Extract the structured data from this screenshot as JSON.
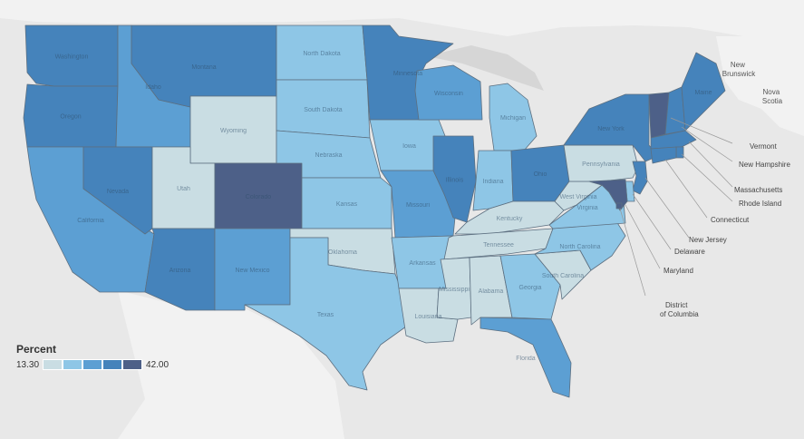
{
  "legend": {
    "title": "Percent",
    "min_label": "13.30",
    "max_label": "42.00",
    "steps": [
      "#c9dde3",
      "#8ec6e6",
      "#5c9fd3",
      "#4583bb",
      "#4d6088"
    ]
  },
  "colors": {
    "background": "#e6e6e6",
    "land": "#f2f2f2",
    "water": "#d4d4d4",
    "borders": "#5c6f80"
  },
  "geo_labels": {
    "new_brunswick": [
      "New",
      "Brunswick"
    ],
    "nova_scotia": [
      "Nova",
      "Scotia"
    ]
  },
  "states": {
    "WA": {
      "name": "Washington",
      "class": 3
    },
    "OR": {
      "name": "Oregon",
      "class": 3
    },
    "CA": {
      "name": "California",
      "class": 2
    },
    "ID": {
      "name": "Idaho",
      "class": 2
    },
    "NV": {
      "name": "Nevada",
      "class": 3
    },
    "MT": {
      "name": "Montana",
      "class": 3
    },
    "WY": {
      "name": "Wyoming",
      "class": 0
    },
    "UT": {
      "name": "Utah",
      "class": 0
    },
    "AZ": {
      "name": "Arizona",
      "class": 3
    },
    "CO": {
      "name": "Colorado",
      "class": 4
    },
    "NM": {
      "name": "New Mexico",
      "class": 2
    },
    "ND": {
      "name": "North Dakota",
      "class": 1
    },
    "SD": {
      "name": "South Dakota",
      "class": 1
    },
    "NE": {
      "name": "Nebraska",
      "class": 1
    },
    "KS": {
      "name": "Kansas",
      "class": 1
    },
    "OK": {
      "name": "Oklahoma",
      "class": 0
    },
    "TX": {
      "name": "Texas",
      "class": 1
    },
    "MN": {
      "name": "Minnesota",
      "class": 3
    },
    "IA": {
      "name": "Iowa",
      "class": 1
    },
    "MO": {
      "name": "Missouri",
      "class": 2
    },
    "AR": {
      "name": "Arkansas",
      "class": 1
    },
    "LA": {
      "name": "Louisiana",
      "class": 0
    },
    "WI": {
      "name": "Wisconsin",
      "class": 2
    },
    "IL": {
      "name": "Illinois",
      "class": 3
    },
    "MI": {
      "name": "Michigan",
      "class": 1
    },
    "IN": {
      "name": "Indiana",
      "class": 1
    },
    "OH": {
      "name": "Ohio",
      "class": 3
    },
    "KY": {
      "name": "Kentucky",
      "class": 0
    },
    "TN": {
      "name": "Tennessee",
      "class": 0
    },
    "MS": {
      "name": "Mississippi",
      "class": 0
    },
    "AL": {
      "name": "Alabama",
      "class": 0
    },
    "GA": {
      "name": "Georgia",
      "class": 1
    },
    "FL": {
      "name": "Florida",
      "class": 2
    },
    "SC": {
      "name": "South Carolina",
      "class": 0
    },
    "NC": {
      "name": "North Carolina",
      "class": 1
    },
    "VA": {
      "name": "Virginia",
      "class": 1
    },
    "WV": {
      "name": "West Virginia",
      "class": 0
    },
    "PA": {
      "name": "Pennsylvania",
      "class": 0
    },
    "NY": {
      "name": "New York",
      "class": 3
    },
    "VT": {
      "name": "Vermont",
      "class": 4
    },
    "NH": {
      "name": "New Hampshire",
      "class": 3
    },
    "ME": {
      "name": "Maine",
      "class": 3
    },
    "MA": {
      "name": "Massachusetts",
      "class": 3
    },
    "RI": {
      "name": "Rhode Island",
      "class": 3
    },
    "CT": {
      "name": "Connecticut",
      "class": 3
    },
    "NJ": {
      "name": "New Jersey",
      "class": 3
    },
    "DE": {
      "name": "Delaware",
      "class": 1
    },
    "MD": {
      "name": "Maryland",
      "class": 4
    },
    "DC": {
      "name": "District of Columbia",
      "class": 4
    }
  },
  "callouts": {
    "vermont": "Vermont",
    "new_hampshire": "New Hampshire",
    "massachusetts": "Massachusetts",
    "rhode_island": "Rhode Island",
    "connecticut": "Connecticut",
    "new_jersey": "New Jersey",
    "delaware": "Delaware",
    "maryland": "Maryland",
    "dc": [
      "District",
      "of Columbia"
    ]
  }
}
